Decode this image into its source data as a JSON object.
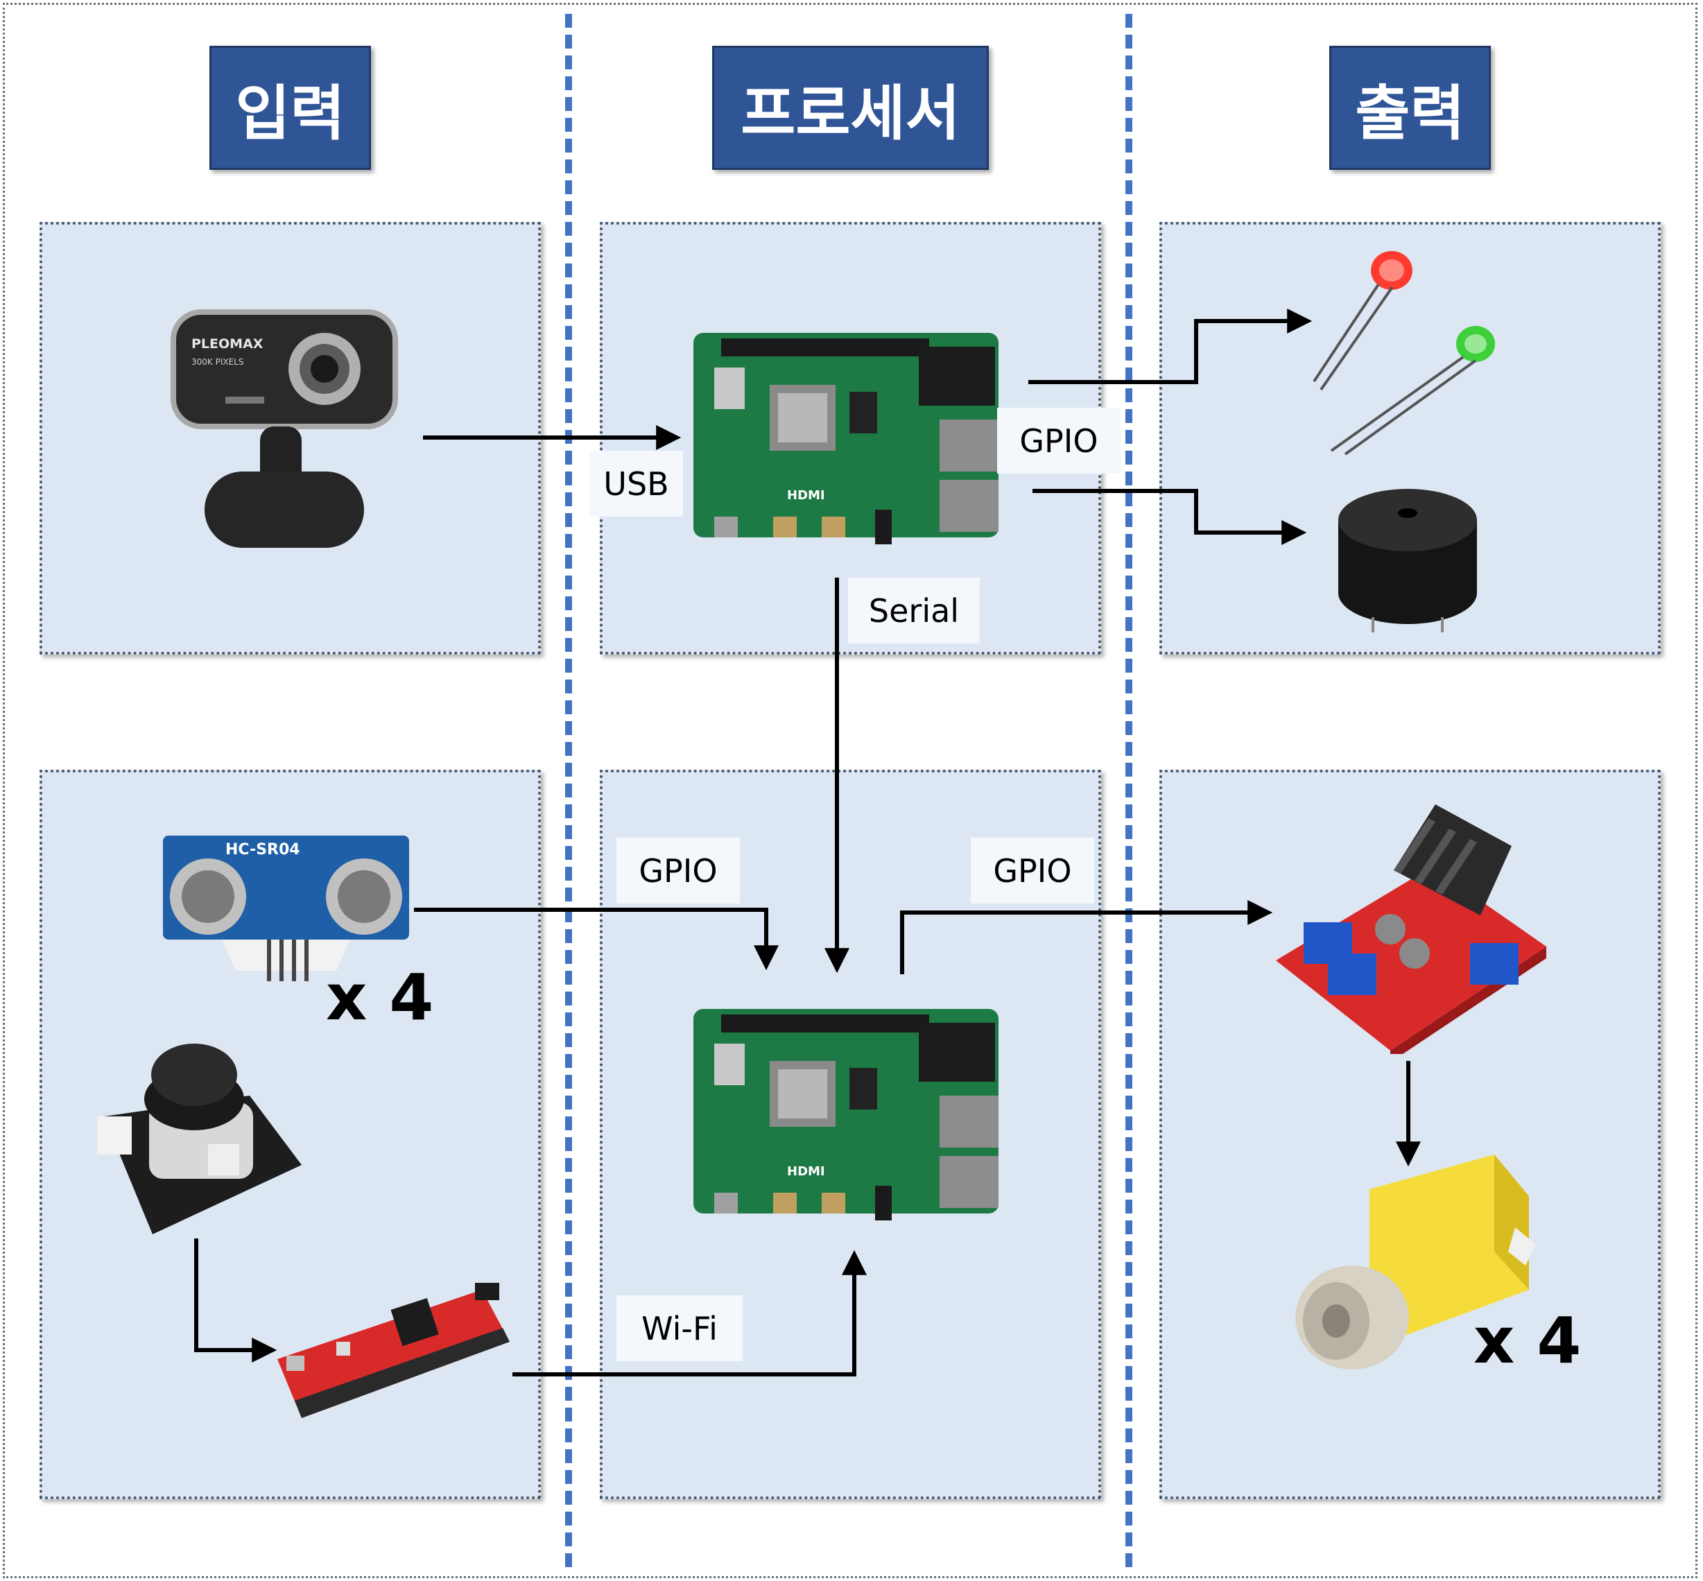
{
  "headers": {
    "input": "입력",
    "processor": "프로세서",
    "output": "출력"
  },
  "connection_labels": {
    "usb": "USB",
    "gpio_leds": "GPIO",
    "serial": "Serial",
    "gpio_sensor": "GPIO",
    "gpio_motor_driver": "GPIO",
    "wifi": "Wi-Fi"
  },
  "device_text": {
    "webcam_brand": "PLEOMAX",
    "webcam_sub": "300K PIXELS",
    "ultrasonic_model": "HC-SR04",
    "rpi_hdmi": "HDMI"
  },
  "counts": {
    "ultrasonic": "x 4",
    "motor": "x 4"
  },
  "colors": {
    "header_fill": "#2f5597",
    "panel_fill": "#dde7f3",
    "divider": "#4472c4",
    "pcb_green": "#1e7a45",
    "motor_yellow": "#f5dc3a",
    "driver_red": "#d92a2a",
    "led_red": "#ff3b2f",
    "led_green": "#3ecf3a"
  }
}
